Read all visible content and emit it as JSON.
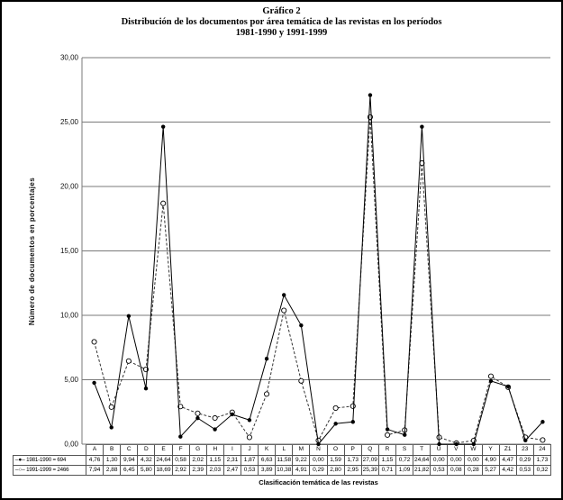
{
  "title": {
    "line1": "Gráfico 2",
    "line2": "Distribución de los documentos por área temática de las revistas en los períodos",
    "line3": "1981-1990 y 1991-1999"
  },
  "chart_data": {
    "type": "line",
    "title": "Gráfico 2 — Distribución de los documentos por área temática de las revistas en los períodos 1981-1990 y 1991-1999",
    "xlabel": "Clasificación temática de las revistas",
    "ylabel": "Número de documentos en porcentajes",
    "ylim": [
      0,
      30
    ],
    "ytick_values": [
      30,
      25,
      20,
      15,
      10,
      5,
      0
    ],
    "ytick_labels": [
      "30,00",
      "25,00",
      "20,00",
      "15,00",
      "10,00",
      "5,00",
      "0,00"
    ],
    "grid": "horizontal",
    "legend_position": "bottom-left-table",
    "decimal_separator": ",",
    "categories": [
      "A",
      "B",
      "C",
      "D",
      "E",
      "F",
      "G",
      "H",
      "I",
      "J",
      "K",
      "L",
      "M",
      "N",
      "O",
      "P",
      "Q",
      "R",
      "S",
      "T",
      "U",
      "V",
      "W",
      "Y",
      "Z1",
      "23",
      "24"
    ],
    "series": [
      {
        "name": "1981-1990 = 694",
        "line": "solid",
        "marker": "filled-circle",
        "values": [
          4.76,
          1.3,
          9.94,
          4.32,
          24.64,
          0.58,
          2.02,
          1.15,
          2.31,
          1.87,
          6.63,
          11.58,
          9.22,
          0.0,
          1.59,
          1.73,
          27.09,
          1.15,
          0.72,
          24.64,
          0.0,
          0.0,
          0.0,
          4.9,
          4.47,
          0.29,
          1.73
        ]
      },
      {
        "name": "1991-1999 = 2466",
        "line": "dashed",
        "marker": "open-circle",
        "values": [
          7.94,
          2.88,
          6.45,
          5.8,
          18.69,
          2.92,
          2.39,
          2.03,
          2.47,
          0.53,
          3.89,
          10.38,
          4.91,
          0.29,
          2.8,
          2.95,
          25.39,
          0.71,
          1.09,
          21.82,
          0.53,
          0.08,
          0.28,
          5.27,
          4.42,
          0.53,
          0.32
        ]
      }
    ],
    "colors": {
      "series1": "#000000",
      "series2": "#333333",
      "grid": "#7a7a7a",
      "axis": "#7a7a7a",
      "text": "#111111",
      "table_border": "#555555"
    }
  }
}
